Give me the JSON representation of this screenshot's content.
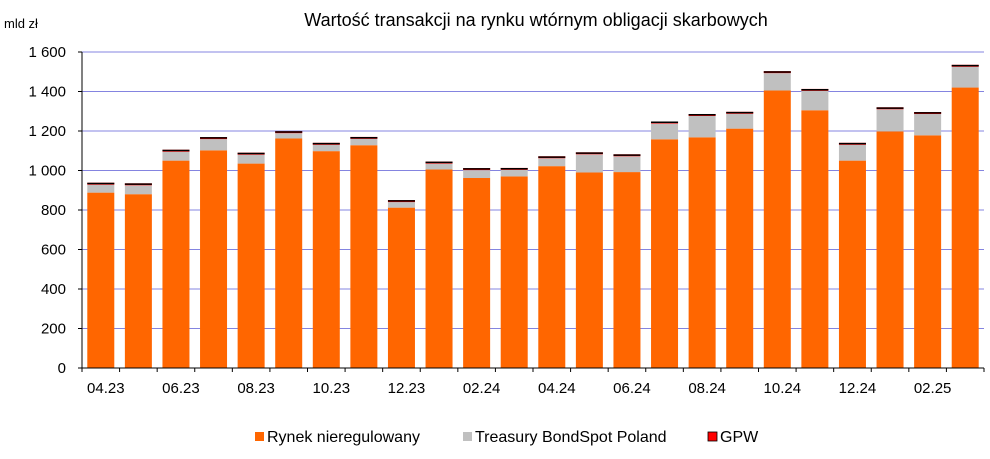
{
  "chart_data": {
    "type": "bar",
    "stacked": true,
    "title": "Wartość transakcji na rynku wtórnym obligacji skarbowych",
    "ylabel": "mld zł",
    "xlabel": "",
    "ylim": [
      0,
      1600
    ],
    "yticks": [
      0,
      200,
      400,
      600,
      800,
      1000,
      1200,
      1400,
      1600
    ],
    "ytick_labels": [
      "0",
      "200",
      "400",
      "600",
      "800",
      "1 000",
      "1 200",
      "1 400",
      "1 600"
    ],
    "grid": true,
    "legend_position": "bottom",
    "categories": [
      "04.23",
      "05.23",
      "06.23",
      "07.23",
      "08.23",
      "09.23",
      "10.23",
      "11.23",
      "12.23",
      "01.24",
      "02.24",
      "03.24",
      "04.24",
      "05.24",
      "06.24",
      "07.24",
      "08.24",
      "09.24",
      "10.24",
      "11.24",
      "12.24",
      "01.25",
      "02.25",
      "03.25"
    ],
    "category_labels": [
      "04.23",
      "",
      "06.23",
      "",
      "08.23",
      "",
      "10.23",
      "",
      "12.23",
      "",
      "02.24",
      "",
      "04.24",
      "",
      "06.24",
      "",
      "08.24",
      "",
      "10.24",
      "",
      "12.24",
      "",
      "02.25",
      ""
    ],
    "series": [
      {
        "name": "Rynek nieregulowany",
        "color": "#ff6600",
        "values": [
          888,
          880,
          1050,
          1102,
          1035,
          1162,
          1098,
          1128,
          812,
          1005,
          962,
          970,
          1022,
          990,
          992,
          1158,
          1168,
          1212,
          1405,
          1305,
          1050,
          1198,
          1178,
          1420
        ]
      },
      {
        "name": "Treasury BondSpot Poland",
        "color": "#c0c0c0",
        "values": [
          40,
          45,
          45,
          57,
          45,
          27,
          32,
          32,
          28,
          30,
          40,
          33,
          40,
          92,
          80,
          80,
          108,
          75,
          88,
          98,
          80,
          112,
          108,
          105
        ]
      },
      {
        "name": "GPW",
        "color": "#ff0000",
        "values": [
          6,
          6,
          6,
          6,
          6,
          6,
          6,
          6,
          6,
          6,
          6,
          6,
          6,
          6,
          6,
          6,
          6,
          6,
          6,
          6,
          6,
          6,
          6,
          6
        ]
      }
    ]
  }
}
